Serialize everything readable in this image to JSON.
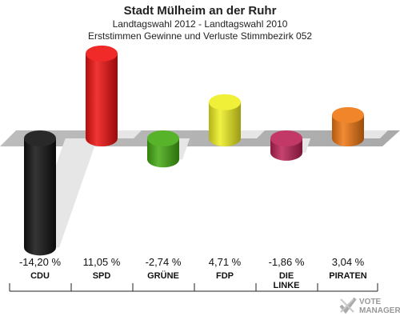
{
  "header": {
    "title": "Stadt Mülheim an der Ruhr",
    "subtitle1": "Landtagswahl 2012 - Landtagswahl 2010",
    "subtitle2": "Erststimmen Gewinne und Verluste Stimmbezirk 052"
  },
  "watermark": {
    "line1": "VOTE",
    "line2": "MANAGER"
  },
  "chart_data": {
    "type": "bar",
    "title": "Stadt Mülheim an der Ruhr",
    "subtitle": "Landtagswahl 2012 - Landtagswahl 2010 / Erststimmen Gewinne und Verluste Stimmbezirk 052",
    "categories": [
      "CDU",
      "SPD",
      "GRÜNE",
      "FDP",
      "DIE LINKE",
      "PIRATEN"
    ],
    "category_lines": [
      [
        "CDU"
      ],
      [
        "SPD"
      ],
      [
        "GRÜNE"
      ],
      [
        "FDP"
      ],
      [
        "DIE",
        "LINKE"
      ],
      [
        "PIRATEN"
      ]
    ],
    "values": [
      -14.2,
      11.05,
      -2.74,
      4.71,
      -1.86,
      3.04
    ],
    "value_labels": [
      "-14,20 %",
      "11,05 %",
      "-2,74 %",
      "4,71 %",
      "-1,86 %",
      "3,04 %"
    ],
    "colors": [
      "#111111",
      "#ee1111",
      "#44aa11",
      "#eeee22",
      "#bb2255",
      "#ee7711"
    ],
    "unit": "%",
    "ylim": [
      -15,
      12
    ],
    "xlabel": "",
    "ylabel": "",
    "grid": false,
    "legend": "none"
  }
}
